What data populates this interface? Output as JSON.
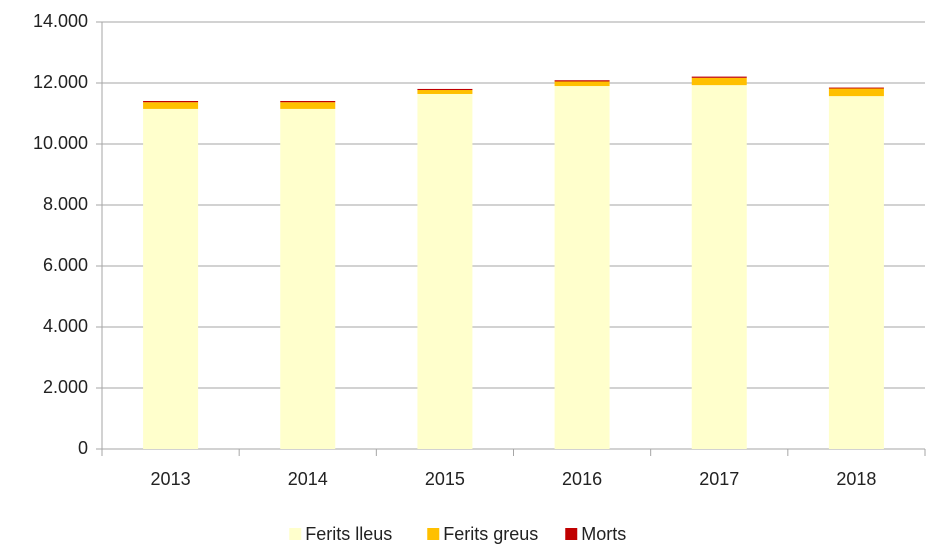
{
  "chart_data": {
    "type": "stacked_bar",
    "categories": [
      "2013",
      "2014",
      "2015",
      "2016",
      "2017",
      "2018"
    ],
    "series": [
      {
        "name": "Ferits lleus",
        "color": "#ffffcc",
        "values": [
          11150,
          11150,
          11640,
          11900,
          11930,
          11570
        ]
      },
      {
        "name": "Ferits greus",
        "color": "#ffc000",
        "values": [
          220,
          220,
          130,
          150,
          240,
          250
        ]
      },
      {
        "name": "Morts",
        "color": "#c00000",
        "values": [
          40,
          40,
          35,
          40,
          40,
          30
        ]
      }
    ],
    "ylim": [
      0,
      14000
    ],
    "yticks": [
      0,
      {
        "value": 2000,
        "label": "2.000"
      },
      {
        "value": 4000,
        "label": "4.000"
      },
      {
        "value": 6000,
        "label": "6.000"
      },
      {
        "value": 8000,
        "label": "8.000"
      },
      {
        "value": 10000,
        "label": "10.000"
      },
      {
        "value": 12000,
        "label": "12.000"
      },
      {
        "value": 14000,
        "label": "14.000"
      }
    ],
    "grid": true,
    "legend": "bottom"
  }
}
